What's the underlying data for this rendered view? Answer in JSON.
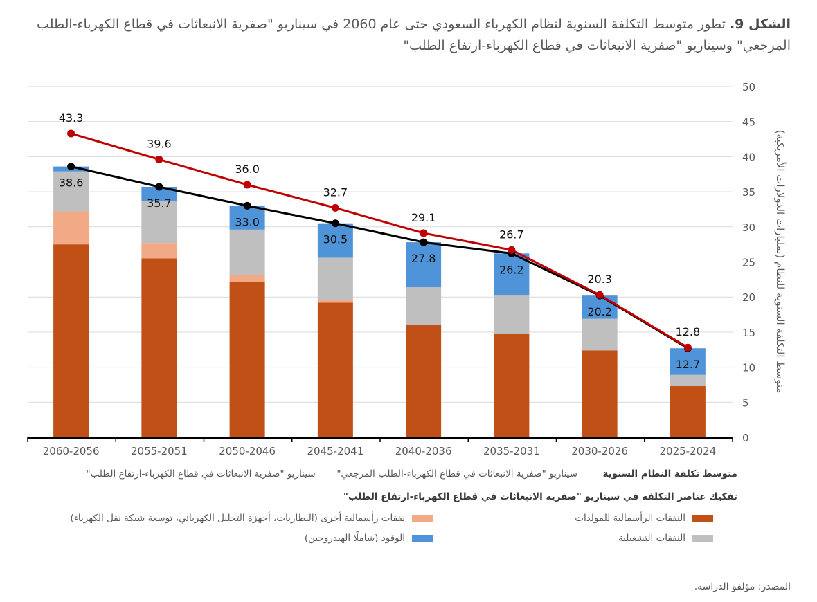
{
  "figure": {
    "label": "الشكل 9.",
    "title_text": "تطور متوسط التكلفة السنوية لنظام الكهرباء السعودي حتى عام 2060 في سيناريو \"صفرية الانبعاثات في قطاع الكهرباء-الطلب المرجعي\" وسيناريو \"صفرية الانبعاثات في قطاع الكهرباء-ارتفاع الطلب\"",
    "source": "المصدر: مؤلفو الدراسة."
  },
  "legend": {
    "lines_heading": "متوسط تكلفة النظام السنوية",
    "lines": [
      {
        "label": "سيناريو \"صفرية الانبعاثات في قطاع الكهرباء-الطلب المرجعي\"",
        "color": "#000000"
      },
      {
        "label": "سيناريو \"صفرية الانبعاثات في قطاع الكهرباء-ارتفاع الطلب\"",
        "color": "#c00000"
      }
    ],
    "bars_heading": "تفكيك عناصر التكلفة في سيناريو \"صفرية الانبعاثات في قطاع الكهرباء-ارتفاع الطلب\"",
    "bars": [
      {
        "label": "النفقات الرأسمالية للمولدات",
        "color": "#c05016"
      },
      {
        "label": "نفقات رأسمالية أخرى (البطاريات، أجهزة التحليل الكهربائي، توسعة شبكة نقل الكهرباء)",
        "color": "#f2a985"
      },
      {
        "label": "النفقات التشغيلية",
        "color": "#bfbfbf"
      },
      {
        "label": "الوقود (شاملًا الهيدروجين)",
        "color": "#4f93d8"
      }
    ]
  },
  "chart_data": {
    "type": "bar",
    "stacked": true,
    "title": "تطور متوسط التكلفة السنوية لنظام الكهرباء السعودي حتى عام 2060",
    "xlabel": "",
    "ylabel": "متوسط التكلفة السنوية للنظام (بمليارات الدولارات الأمريكية)",
    "ylim": [
      0,
      50
    ],
    "yticks": [
      0,
      5,
      10,
      15,
      20,
      25,
      30,
      35,
      40,
      45,
      50
    ],
    "grid": true,
    "y_axis_side": "right",
    "categories": [
      "2060-2056",
      "2055-2051",
      "2050-2046",
      "2045-2041",
      "2040-2036",
      "2035-2031",
      "2030-2026",
      "2025-2024"
    ],
    "series": [
      {
        "name": "النفقات الرأسمالية للمولدات",
        "kind": "bar",
        "color": "#c05016",
        "values": [
          27.5,
          25.5,
          22.1,
          19.2,
          16.0,
          14.7,
          12.4,
          7.3
        ]
      },
      {
        "name": "نفقات رأسمالية أخرى (البطاريات، أجهزة التحليل الكهربائي، توسعة شبكة نقل الكهرباء)",
        "kind": "bar",
        "color": "#f2a985",
        "values": [
          4.7,
          2.2,
          1.0,
          0.4,
          0.0,
          0.0,
          0.0,
          0.0
        ]
      },
      {
        "name": "النفقات التشغيلية",
        "kind": "bar",
        "color": "#bfbfbf",
        "values": [
          5.7,
          6.0,
          6.5,
          6.0,
          5.4,
          5.5,
          4.5,
          1.6
        ]
      },
      {
        "name": "الوقود (شاملًا الهيدروجين)",
        "kind": "bar",
        "color": "#4f93d8",
        "values": [
          0.7,
          2.0,
          3.4,
          4.9,
          6.4,
          6.0,
          3.3,
          3.8
        ]
      },
      {
        "name": "سيناريو \"صفرية الانبعاثات في قطاع الكهرباء-الطلب المرجعي\"",
        "kind": "line",
        "color": "#000000",
        "values": [
          38.6,
          35.7,
          33.0,
          30.5,
          27.8,
          26.2,
          20.2,
          12.7
        ],
        "labels": [
          "38.6",
          "35.7",
          "33.0",
          "30.5",
          "27.8",
          "26.2",
          "20.2",
          "12.7"
        ]
      },
      {
        "name": "سيناريو \"صفرية الانبعاثات في قطاع الكهرباء-ارتفاع الطلب\"",
        "kind": "line",
        "color": "#c00000",
        "values": [
          43.3,
          39.6,
          36.0,
          32.7,
          29.1,
          26.7,
          20.3,
          12.8
        ],
        "labels": [
          "43.3",
          "39.6",
          "36.0",
          "32.7",
          "29.1",
          "26.7",
          "20.3",
          "12.8"
        ]
      }
    ]
  }
}
